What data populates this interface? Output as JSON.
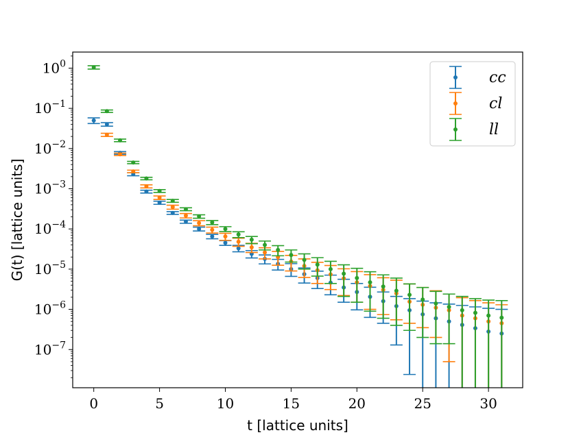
{
  "chart_data": {
    "type": "scatter",
    "title": "",
    "xlabel": "t [lattice units]",
    "ylabel": "G(t) [lattice units]",
    "xlim": [
      -1.6,
      32.6
    ],
    "ylim_log10": [
      -7.95,
      0.4
    ],
    "yscale": "log",
    "x_ticks": [
      0,
      5,
      10,
      15,
      20,
      25,
      30
    ],
    "y_ticks": [
      {
        "exp": 0,
        "label": "10^0"
      },
      {
        "exp": -1,
        "label": "10^-1"
      },
      {
        "exp": -2,
        "label": "10^-2"
      },
      {
        "exp": -3,
        "label": "10^-3"
      },
      {
        "exp": -4,
        "label": "10^-4"
      },
      {
        "exp": -5,
        "label": "10^-5"
      },
      {
        "exp": -6,
        "label": "10^-6"
      },
      {
        "exp": -7,
        "label": "10^-7"
      }
    ],
    "legend_position": "top-right",
    "series": [
      {
        "name": "cc",
        "color": "#1f77b4",
        "x": [
          0,
          1,
          2,
          3,
          4,
          5,
          6,
          7,
          8,
          9,
          10,
          11,
          12,
          13,
          14,
          15,
          16,
          17,
          18,
          19,
          20,
          21,
          22,
          23,
          24,
          25,
          26,
          27,
          28,
          29,
          30,
          31
        ],
        "y": [
          0.05,
          0.04,
          0.0078,
          0.0023,
          0.00085,
          0.00045,
          0.00025,
          0.000152,
          0.0001,
          6.5e-05,
          4.5e-05,
          3.3e-05,
          2.4e-05,
          1.8e-05,
          1.35e-05,
          1e-05,
          7.5e-06,
          6e-06,
          4.6e-06,
          3.5e-06,
          2.7e-06,
          2.05e-06,
          1.6e-06,
          1.2e-06,
          9.5e-07,
          7.5e-07,
          6e-07,
          5e-07,
          4.1e-07,
          3.4e-07,
          2.8e-07,
          2.5e-07
        ],
        "err_hi": [
          0.058,
          0.044,
          0.0084,
          0.0025,
          0.00092,
          0.00049,
          0.00027,
          0.000166,
          0.000111,
          7.3e-05,
          5.1e-05,
          3.9e-05,
          2.9e-05,
          2.25e-05,
          1.75e-05,
          1.37e-05,
          1.07e-05,
          8.9e-06,
          7.1e-06,
          5.6e-06,
          4.4e-06,
          3.55e-06,
          2.7e-06,
          2.1e-06,
          1.85e-06,
          1.6e-06,
          1.45e-06,
          1.35e-06,
          1.25e-06,
          1.15e-06,
          1.06e-06,
          1e-06
        ],
        "err_lo": [
          0.042,
          0.036,
          0.0072,
          0.0021,
          0.00078,
          0.00041,
          0.00023,
          0.000138,
          8.9e-05,
          5.7e-05,
          3.9e-05,
          2.7e-05,
          1.9e-05,
          1.35e-05,
          9.5e-06,
          6.6e-06,
          4.5e-06,
          3.3e-06,
          2.3e-06,
          1.5e-06,
          9.7e-07,
          6.3e-07,
          4.5e-07,
          1.3e-07,
          2.4e-08,
          null,
          null,
          null,
          null,
          null,
          null,
          null
        ]
      },
      {
        "name": "cl",
        "color": "#ff7f0e",
        "x": [
          1,
          2,
          3,
          4,
          5,
          6,
          7,
          8,
          9,
          10,
          11,
          12,
          13,
          14,
          15,
          16,
          17,
          18,
          19,
          20,
          21,
          22,
          23,
          24,
          25,
          26,
          27,
          28,
          29,
          30,
          31
        ],
        "y": [
          0.022,
          0.0072,
          0.0027,
          0.00115,
          0.0006,
          0.00035,
          0.000215,
          0.00014,
          9.5e-05,
          6.5e-05,
          4.8e-05,
          3.5e-05,
          2.6e-05,
          2e-05,
          1.55e-05,
          1.2e-05,
          9.4e-06,
          7.4e-06,
          5.9e-06,
          4.7e-06,
          3.8e-06,
          3.05e-06,
          2.5e-06,
          1.55e-06,
          1.3e-06,
          1.1e-06,
          9.5e-07,
          7e-07,
          6e-07,
          5e-07,
          4.5e-07
        ],
        "err_hi": [
          0.024,
          0.0077,
          0.0029,
          0.00125,
          0.00066,
          0.00039,
          0.000242,
          0.00016,
          0.000111,
          7.8e-05,
          5.9e-05,
          4.4e-05,
          3.4e-05,
          2.75e-05,
          2.2e-05,
          1.8e-05,
          1.48e-05,
          1.23e-05,
          1.02e-05,
          8.7e-06,
          7.3e-06,
          6.1e-06,
          5.3e-06,
          4.3e-06,
          3.5e-06,
          2.9e-06,
          2.4e-06,
          1.95e-06,
          1.65e-06,
          1.45e-06,
          1.3e-06
        ],
        "err_lo": [
          0.02,
          0.0067,
          0.0025,
          0.00105,
          0.00054,
          0.00031,
          0.000188,
          0.00012,
          7.9e-05,
          5.2e-05,
          3.7e-05,
          2.6e-05,
          1.8e-05,
          1.25e-05,
          9e-06,
          6.2e-06,
          4.4e-06,
          3.1e-06,
          2.2e-06,
          1.5e-06,
          1e-06,
          7.4e-07,
          5.5e-07,
          4.5e-07,
          3.5e-07,
          2e-07,
          5e-08,
          null,
          null,
          null,
          null
        ]
      },
      {
        "name": "ll",
        "color": "#2ca02c",
        "x": [
          0,
          1,
          2,
          3,
          4,
          5,
          6,
          7,
          8,
          9,
          10,
          11,
          12,
          13,
          14,
          15,
          16,
          17,
          18,
          19,
          20,
          21,
          22,
          23,
          24,
          25,
          26,
          27,
          28,
          29,
          30,
          31
        ],
        "y": [
          1.05,
          0.085,
          0.016,
          0.0045,
          0.0018,
          0.00088,
          0.0005,
          0.00031,
          0.000205,
          0.000145,
          0.0001,
          7.3e-05,
          5.4e-05,
          4e-05,
          3e-05,
          2.25e-05,
          1.7e-05,
          1.3e-05,
          1e-05,
          7.7e-06,
          6e-06,
          4.7e-06,
          3.7e-06,
          2.9e-06,
          2.3e-06,
          1.75e-06,
          1.4e-06,
          1.15e-06,
          9.5e-07,
          8.2e-07,
          7e-07,
          6.2e-07
        ],
        "err_hi": [
          1.15,
          0.091,
          0.0172,
          0.0048,
          0.00193,
          0.00095,
          0.00054,
          0.000336,
          0.000225,
          0.000162,
          0.000114,
          8.5e-05,
          6.5e-05,
          5e-05,
          3.85e-05,
          3e-05,
          2.4e-05,
          1.93e-05,
          1.57e-05,
          1.28e-05,
          1.05e-05,
          8.6e-06,
          7.2e-06,
          6e-06,
          4.3e-06,
          3.5e-06,
          2.8e-06,
          2.4e-06,
          2.1e-06,
          1.85e-06,
          1.7e-06,
          1.65e-06
        ],
        "err_lo": [
          0.95,
          0.079,
          0.0148,
          0.0042,
          0.00167,
          0.00081,
          0.00046,
          0.000284,
          0.000185,
          0.000128,
          8.6e-05,
          6.1e-05,
          4.3e-05,
          3e-05,
          2.15e-05,
          1.5e-05,
          1e-05,
          6.7e-06,
          4.4e-06,
          2.1e-06,
          1.5e-06,
          9e-07,
          6e-07,
          4e-07,
          3e-07,
          2e-07,
          1.4e-07,
          1.4e-07,
          null,
          null,
          null,
          null
        ]
      }
    ]
  }
}
